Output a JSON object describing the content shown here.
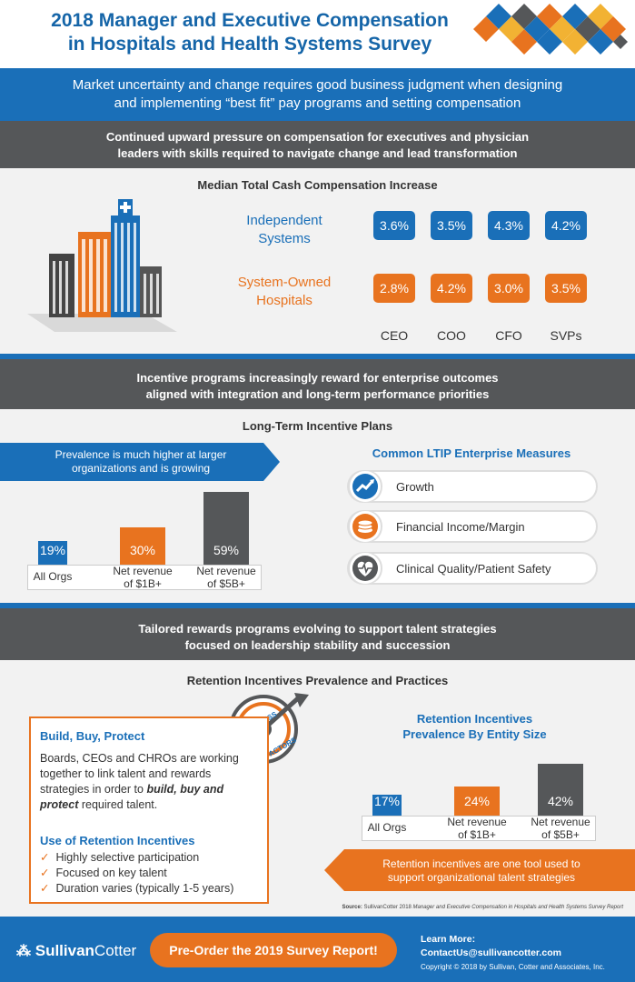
{
  "header": {
    "title_line1": "2018 Manager and Executive Compensation",
    "title_line2": "in Hospitals and Health Systems Survey",
    "colors": {
      "blue": "#1a6fb8",
      "orange": "#e8731f",
      "gold": "#f2b233",
      "dark": "#555759"
    }
  },
  "intro": {
    "line1": "Market uncertainty and change requires good business judgment when designing",
    "line2": "and implementing “best fit” pay programs and setting compensation"
  },
  "section1": {
    "band_line1": "Continued upward pressure on compensation for executives and physician",
    "band_line2": "leaders with skills required to navigate change and lead transformation",
    "title": "Median Total Cash Compensation Increase",
    "rows": [
      {
        "label_line1": "Independent",
        "label_line2": "Systems",
        "values": [
          "3.6%",
          "3.5%",
          "4.3%",
          "4.2%"
        ]
      },
      {
        "label_line1": "System-Owned",
        "label_line2": "Hospitals",
        "values": [
          "2.8%",
          "4.2%",
          "3.0%",
          "3.5%"
        ]
      }
    ],
    "roles": [
      "CEO",
      "COO",
      "CFO",
      "SVPs"
    ]
  },
  "section2": {
    "band_line1": "Incentive programs increasingly reward for enterprise outcomes",
    "band_line2": "aligned with integration and long-term performance priorities",
    "title": "Long-Term Incentive Plans",
    "banner_line1": "Prevalence is much higher at larger",
    "banner_line2": "organizations and is growing",
    "bars": [
      {
        "value": "19%",
        "label_line1": "All Orgs",
        "label_line2": "",
        "pct": 19
      },
      {
        "value": "30%",
        "label_line1": "Net revenue",
        "label_line2": "of $1B+",
        "pct": 30
      },
      {
        "value": "59%",
        "label_line1": "Net revenue",
        "label_line2": "of $5B+",
        "pct": 59
      }
    ],
    "measures_title": "Common LTIP Enterprise Measures",
    "measures": [
      {
        "label": "Growth",
        "icon": "growth-chart-icon"
      },
      {
        "label": "Financial Income/Margin",
        "icon": "coins-icon"
      },
      {
        "label": "Clinical Quality/Patient Safety",
        "icon": "heartbeat-icon"
      }
    ]
  },
  "section3": {
    "band_line1": "Tailored rewards programs evolving to support talent strategies",
    "band_line2": "focused on leadership stability and succession",
    "title": "Retention Incentives Prevalence and Practices",
    "badge_line1": "SUCCESS",
    "badge_line2": "FACTORS",
    "box": {
      "heading": "Build, Buy, Protect",
      "para1": "Boards, CEOs and CHROs are working together to link talent and rewards strategies in order to",
      "para_emph": "build, buy and protect",
      "para2": "required talent.",
      "list_heading": "Use of Retention Incentives",
      "items": [
        "Highly selective participation",
        "Focused on key talent",
        "Duration varies (typically 1-5 years)"
      ]
    },
    "chart_title_line1": "Retention Incentives",
    "chart_title_line2": "Prevalence By Entity Size",
    "bars": [
      {
        "value": "17%",
        "label_line1": "All Orgs",
        "label_line2": "",
        "pct": 17
      },
      {
        "value": "24%",
        "label_line1": "Net revenue",
        "label_line2": "of $1B+",
        "pct": 24
      },
      {
        "value": "42%",
        "label_line1": "Net revenue",
        "label_line2": "of $5B+",
        "pct": 42
      }
    ],
    "banner_line1": "Retention incentives are one tool used to",
    "banner_line2": "support organizational talent strategies",
    "source_prefix": "Source:",
    "source_plain": "SullivanCotter 2018",
    "source_italic": "Manager and Executive Compensation in Hospitals and Health Systems Survey Report"
  },
  "footer": {
    "brand_a": "Sullivan",
    "brand_b": "Cotter",
    "cta": "Pre-Order the 2019 Survey Report!",
    "learn_more": "Learn More:",
    "email": "ContactUs@sullivancotter.com",
    "copyright": "Copyright © 2018 by Sullivan, Cotter and Associates, Inc."
  }
}
